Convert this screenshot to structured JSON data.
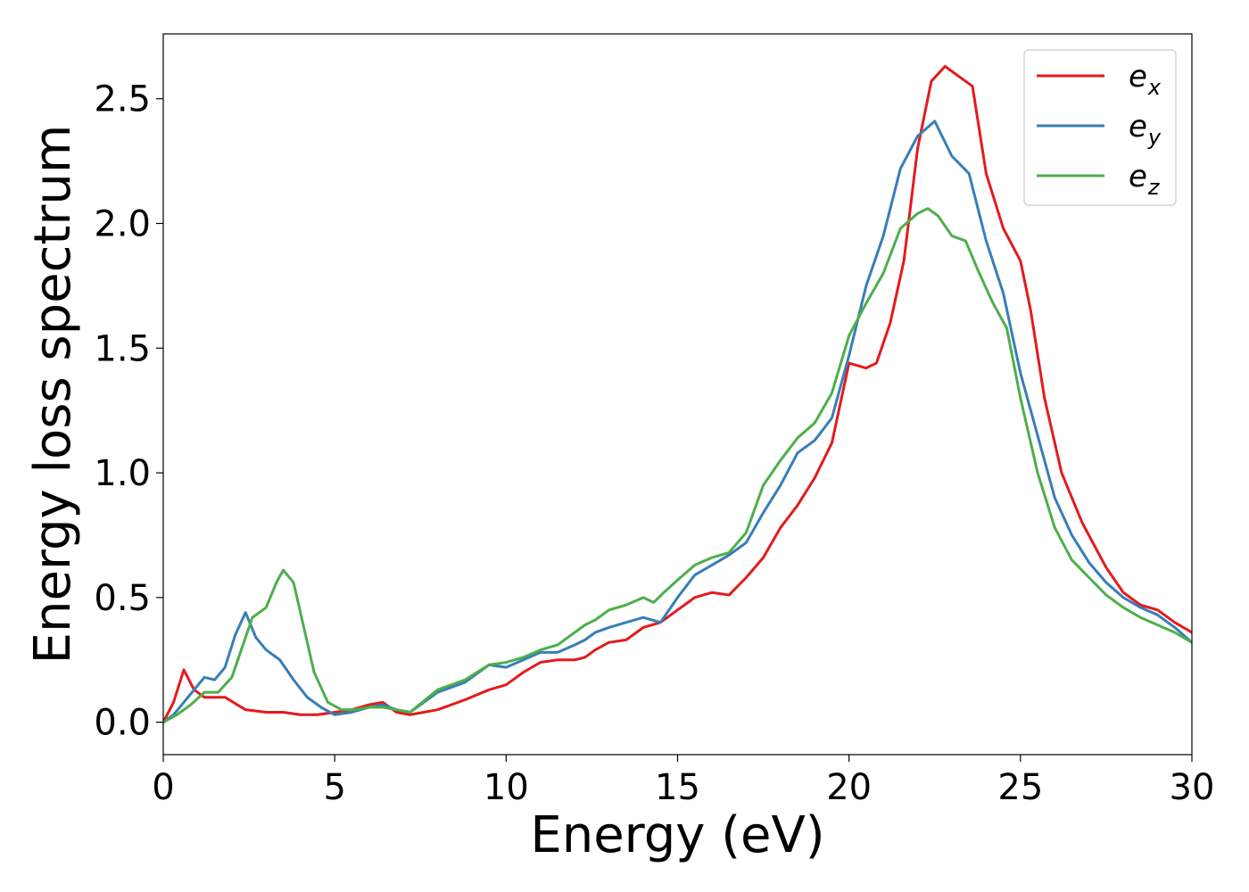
{
  "chart_data": {
    "type": "line",
    "title": "",
    "xlabel": "Energy (eV)",
    "ylabel": "Energy loss spectrum",
    "xlim": [
      0,
      30
    ],
    "ylim": [
      -0.13,
      2.76
    ],
    "xticks": [
      0,
      5,
      10,
      15,
      20,
      25,
      30
    ],
    "xtick_labels": [
      "0",
      "5",
      "10",
      "15",
      "20",
      "25",
      "30"
    ],
    "yticks": [
      0.0,
      0.5,
      1.0,
      1.5,
      2.0,
      2.5
    ],
    "ytick_labels": [
      "0.0",
      "0.5",
      "1.0",
      "1.5",
      "2.0",
      "2.5"
    ],
    "grid": false,
    "legend_position": "top-right",
    "series": [
      {
        "name": "e_x",
        "legend_base": "e",
        "legend_sub": "x",
        "color": "#e41a1c",
        "x": [
          0,
          0.3,
          0.6,
          0.9,
          1.2,
          1.8,
          2.4,
          3.0,
          3.5,
          4.0,
          4.5,
          5.0,
          5.5,
          6.0,
          6.4,
          6.8,
          7.2,
          8.0,
          8.8,
          9.5,
          10.0,
          10.5,
          11.0,
          11.5,
          12.0,
          12.3,
          12.6,
          13.0,
          13.5,
          14.0,
          14.5,
          15.0,
          15.5,
          16.0,
          16.5,
          17.0,
          17.5,
          18.0,
          18.5,
          19.0,
          19.5,
          20.0,
          20.5,
          20.8,
          21.2,
          21.6,
          22.0,
          22.4,
          22.8,
          23.2,
          23.6,
          24.0,
          24.5,
          25.0,
          25.3,
          25.7,
          26.2,
          26.8,
          27.5,
          28.0,
          28.5,
          29.0,
          29.5,
          30.0
        ],
        "y": [
          0.0,
          0.08,
          0.21,
          0.13,
          0.1,
          0.1,
          0.05,
          0.04,
          0.04,
          0.03,
          0.03,
          0.04,
          0.05,
          0.07,
          0.08,
          0.04,
          0.03,
          0.05,
          0.09,
          0.13,
          0.15,
          0.2,
          0.24,
          0.25,
          0.25,
          0.26,
          0.29,
          0.32,
          0.33,
          0.38,
          0.4,
          0.45,
          0.5,
          0.52,
          0.51,
          0.58,
          0.66,
          0.78,
          0.87,
          0.98,
          1.12,
          1.44,
          1.42,
          1.44,
          1.6,
          1.85,
          2.3,
          2.57,
          2.63,
          2.59,
          2.55,
          2.2,
          1.98,
          1.85,
          1.65,
          1.3,
          1.0,
          0.8,
          0.62,
          0.52,
          0.47,
          0.45,
          0.4,
          0.36
        ]
      },
      {
        "name": "e_y",
        "legend_base": "e",
        "legend_sub": "y",
        "color": "#377eb8",
        "x": [
          0,
          0.3,
          0.6,
          0.9,
          1.2,
          1.5,
          1.8,
          2.1,
          2.4,
          2.7,
          3.0,
          3.4,
          3.8,
          4.2,
          4.6,
          5.0,
          5.5,
          6.0,
          6.4,
          6.8,
          7.2,
          8.0,
          8.8,
          9.5,
          10.0,
          10.5,
          11.0,
          11.5,
          12.0,
          12.3,
          12.6,
          13.0,
          13.5,
          14.0,
          14.5,
          15.0,
          15.5,
          16.0,
          16.5,
          17.0,
          17.5,
          18.0,
          18.5,
          19.0,
          19.5,
          20.0,
          20.5,
          21.0,
          21.5,
          22.0,
          22.5,
          23.0,
          23.5,
          24.0,
          24.5,
          25.0,
          25.5,
          26.0,
          26.5,
          27.0,
          27.5,
          28.0,
          28.5,
          29.0,
          29.5,
          30.0
        ],
        "y": [
          0.0,
          0.03,
          0.08,
          0.13,
          0.18,
          0.17,
          0.22,
          0.35,
          0.44,
          0.34,
          0.29,
          0.25,
          0.17,
          0.1,
          0.06,
          0.03,
          0.04,
          0.06,
          0.07,
          0.05,
          0.04,
          0.12,
          0.16,
          0.23,
          0.22,
          0.25,
          0.28,
          0.28,
          0.31,
          0.33,
          0.36,
          0.38,
          0.4,
          0.42,
          0.4,
          0.5,
          0.59,
          0.63,
          0.67,
          0.72,
          0.84,
          0.95,
          1.08,
          1.13,
          1.22,
          1.47,
          1.75,
          1.95,
          2.22,
          2.35,
          2.41,
          2.27,
          2.2,
          1.93,
          1.72,
          1.4,
          1.15,
          0.9,
          0.75,
          0.64,
          0.56,
          0.5,
          0.46,
          0.43,
          0.38,
          0.32
        ]
      },
      {
        "name": "e_z",
        "legend_base": "e",
        "legend_sub": "z",
        "color": "#4daf4a",
        "x": [
          0,
          0.4,
          0.8,
          1.2,
          1.6,
          2.0,
          2.3,
          2.6,
          3.0,
          3.3,
          3.5,
          3.8,
          4.1,
          4.4,
          4.8,
          5.2,
          5.6,
          6.0,
          6.4,
          6.8,
          7.2,
          8.0,
          8.8,
          9.5,
          10.0,
          10.5,
          11.0,
          11.5,
          12.0,
          12.3,
          12.6,
          13.0,
          13.5,
          14.0,
          14.3,
          14.6,
          15.0,
          15.5,
          16.0,
          16.5,
          17.0,
          17.5,
          18.0,
          18.5,
          19.0,
          19.5,
          20.0,
          20.5,
          21.0,
          21.5,
          22.0,
          22.3,
          22.6,
          23.0,
          23.4,
          23.8,
          24.2,
          24.6,
          25.0,
          25.5,
          26.0,
          26.5,
          27.0,
          27.5,
          28.0,
          28.5,
          29.0,
          29.5,
          30.0
        ],
        "y": [
          0.0,
          0.03,
          0.07,
          0.12,
          0.12,
          0.18,
          0.3,
          0.42,
          0.46,
          0.56,
          0.61,
          0.56,
          0.38,
          0.2,
          0.08,
          0.05,
          0.05,
          0.06,
          0.06,
          0.05,
          0.04,
          0.13,
          0.17,
          0.23,
          0.24,
          0.26,
          0.29,
          0.31,
          0.36,
          0.39,
          0.41,
          0.45,
          0.47,
          0.5,
          0.48,
          0.52,
          0.57,
          0.63,
          0.66,
          0.68,
          0.76,
          0.95,
          1.05,
          1.14,
          1.2,
          1.32,
          1.55,
          1.68,
          1.8,
          1.98,
          2.04,
          2.06,
          2.03,
          1.95,
          1.93,
          1.8,
          1.68,
          1.58,
          1.3,
          1.0,
          0.78,
          0.65,
          0.58,
          0.51,
          0.46,
          0.42,
          0.39,
          0.36,
          0.32
        ]
      }
    ]
  }
}
